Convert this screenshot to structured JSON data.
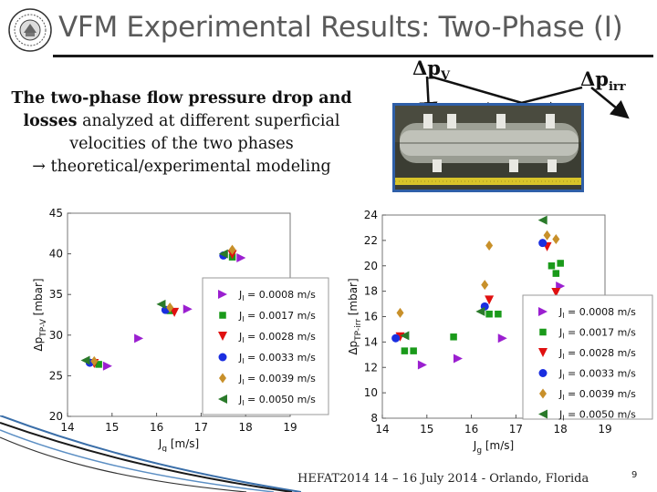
{
  "slide": {
    "title": "VFM Experimental Results: Two-Phase (I)",
    "intro": {
      "bold": "The two-phase flow pressure drop and losses",
      "rest": " analyzed at different superficial velocities of the two phases",
      "arrow": "→",
      "tail": " theoretical/experimental modeling"
    },
    "label_dpv": "Δp",
    "label_dpv_sub": "V",
    "label_dpirr": "Δp",
    "label_dpirr_sub": "irr",
    "footer": "HEFAT2014 14 – 16 July 2014 - Orlando, Florida",
    "page_number": "9"
  },
  "colors": {
    "title": "#5a5a5a",
    "photo_frame": "#2f5fa8",
    "series": [
      "#9b1fd0",
      "#1a9a1a",
      "#e01010",
      "#1a2ee0",
      "#c8902a",
      "#2a7a2a"
    ]
  },
  "chart_data": [
    {
      "type": "scatter",
      "title": "",
      "xlabel": "J_g [m/s]",
      "ylabel": "Δp_TP-V [mbar]",
      "xlim": [
        14,
        19
      ],
      "ylim": [
        20,
        45
      ],
      "xticks": [
        "14",
        "15",
        "16",
        "17",
        "18",
        "19"
      ],
      "yticks": [
        "20",
        "25",
        "30",
        "35",
        "40",
        "45"
      ],
      "legend_position": "bottom-right",
      "series": [
        {
          "name": "J_l = 0.0008 m/s",
          "marker": "triangle-right",
          "points": [
            [
              14.9,
              26.2
            ],
            [
              15.6,
              29.6
            ],
            [
              16.7,
              33.2
            ],
            [
              17.9,
              39.5
            ]
          ]
        },
        {
          "name": "J_l = 0.0017 m/s",
          "marker": "square",
          "points": [
            [
              14.7,
              26.4
            ],
            [
              16.3,
              33.0
            ],
            [
              17.7,
              39.6
            ]
          ]
        },
        {
          "name": "J_l = 0.0028 m/s",
          "marker": "triangle-down",
          "points": [
            [
              14.6,
              26.5
            ],
            [
              16.4,
              32.8
            ],
            [
              17.7,
              39.9
            ]
          ]
        },
        {
          "name": "J_l = 0.0033 m/s",
          "marker": "circle",
          "points": [
            [
              14.5,
              26.6
            ],
            [
              16.2,
              33.1
            ],
            [
              17.5,
              39.8
            ]
          ]
        },
        {
          "name": "J_l = 0.0039 m/s",
          "marker": "diamond",
          "points": [
            [
              14.6,
              26.8
            ],
            [
              16.3,
              33.4
            ],
            [
              17.7,
              40.5
            ]
          ]
        },
        {
          "name": "J_l = 0.0050 m/s",
          "marker": "triangle-left",
          "points": [
            [
              14.4,
              26.9
            ],
            [
              16.1,
              33.8
            ],
            [
              17.5,
              40.0
            ]
          ]
        }
      ]
    },
    {
      "type": "scatter",
      "title": "",
      "xlabel": "J_g [m/s]",
      "ylabel": "Δp_TP-irr [mbar]",
      "xlim": [
        14,
        19
      ],
      "ylim": [
        8,
        24
      ],
      "xticks": [
        "14",
        "15",
        "16",
        "17",
        "18",
        "19"
      ],
      "yticks": [
        "8",
        "10",
        "12",
        "14",
        "16",
        "18",
        "20",
        "22",
        "24"
      ],
      "legend_position": "bottom-right",
      "series": [
        {
          "name": "J_l = 0.0008 m/s",
          "marker": "triangle-right",
          "points": [
            [
              14.9,
              12.2
            ],
            [
              15.7,
              12.7
            ],
            [
              16.7,
              14.3
            ],
            [
              18.0,
              18.4
            ]
          ]
        },
        {
          "name": "J_l = 0.0017 m/s",
          "marker": "square",
          "points": [
            [
              14.5,
              13.3
            ],
            [
              14.7,
              13.3
            ],
            [
              15.6,
              14.4
            ],
            [
              16.4,
              16.2
            ],
            [
              16.6,
              16.2
            ],
            [
              17.9,
              19.4
            ],
            [
              17.8,
              20.0
            ],
            [
              18.0,
              20.2
            ]
          ]
        },
        {
          "name": "J_l = 0.0028 m/s",
          "marker": "triangle-down",
          "points": [
            [
              14.4,
              14.4
            ],
            [
              16.4,
              17.3
            ],
            [
              17.7,
              21.5
            ],
            [
              17.9,
              17.9
            ]
          ]
        },
        {
          "name": "J_l = 0.0033 m/s",
          "marker": "circle",
          "points": [
            [
              14.3,
              14.3
            ],
            [
              16.3,
              16.8
            ],
            [
              17.6,
              21.8
            ]
          ]
        },
        {
          "name": "J_l = 0.0039 m/s",
          "marker": "diamond",
          "points": [
            [
              14.4,
              16.3
            ],
            [
              16.3,
              18.5
            ],
            [
              16.4,
              21.6
            ],
            [
              17.7,
              22.4
            ],
            [
              17.9,
              22.1
            ]
          ]
        },
        {
          "name": "J_l = 0.0050 m/s",
          "marker": "triangle-left",
          "points": [
            [
              14.5,
              14.5
            ],
            [
              16.2,
              16.4
            ],
            [
              17.6,
              23.6
            ]
          ]
        }
      ]
    }
  ]
}
